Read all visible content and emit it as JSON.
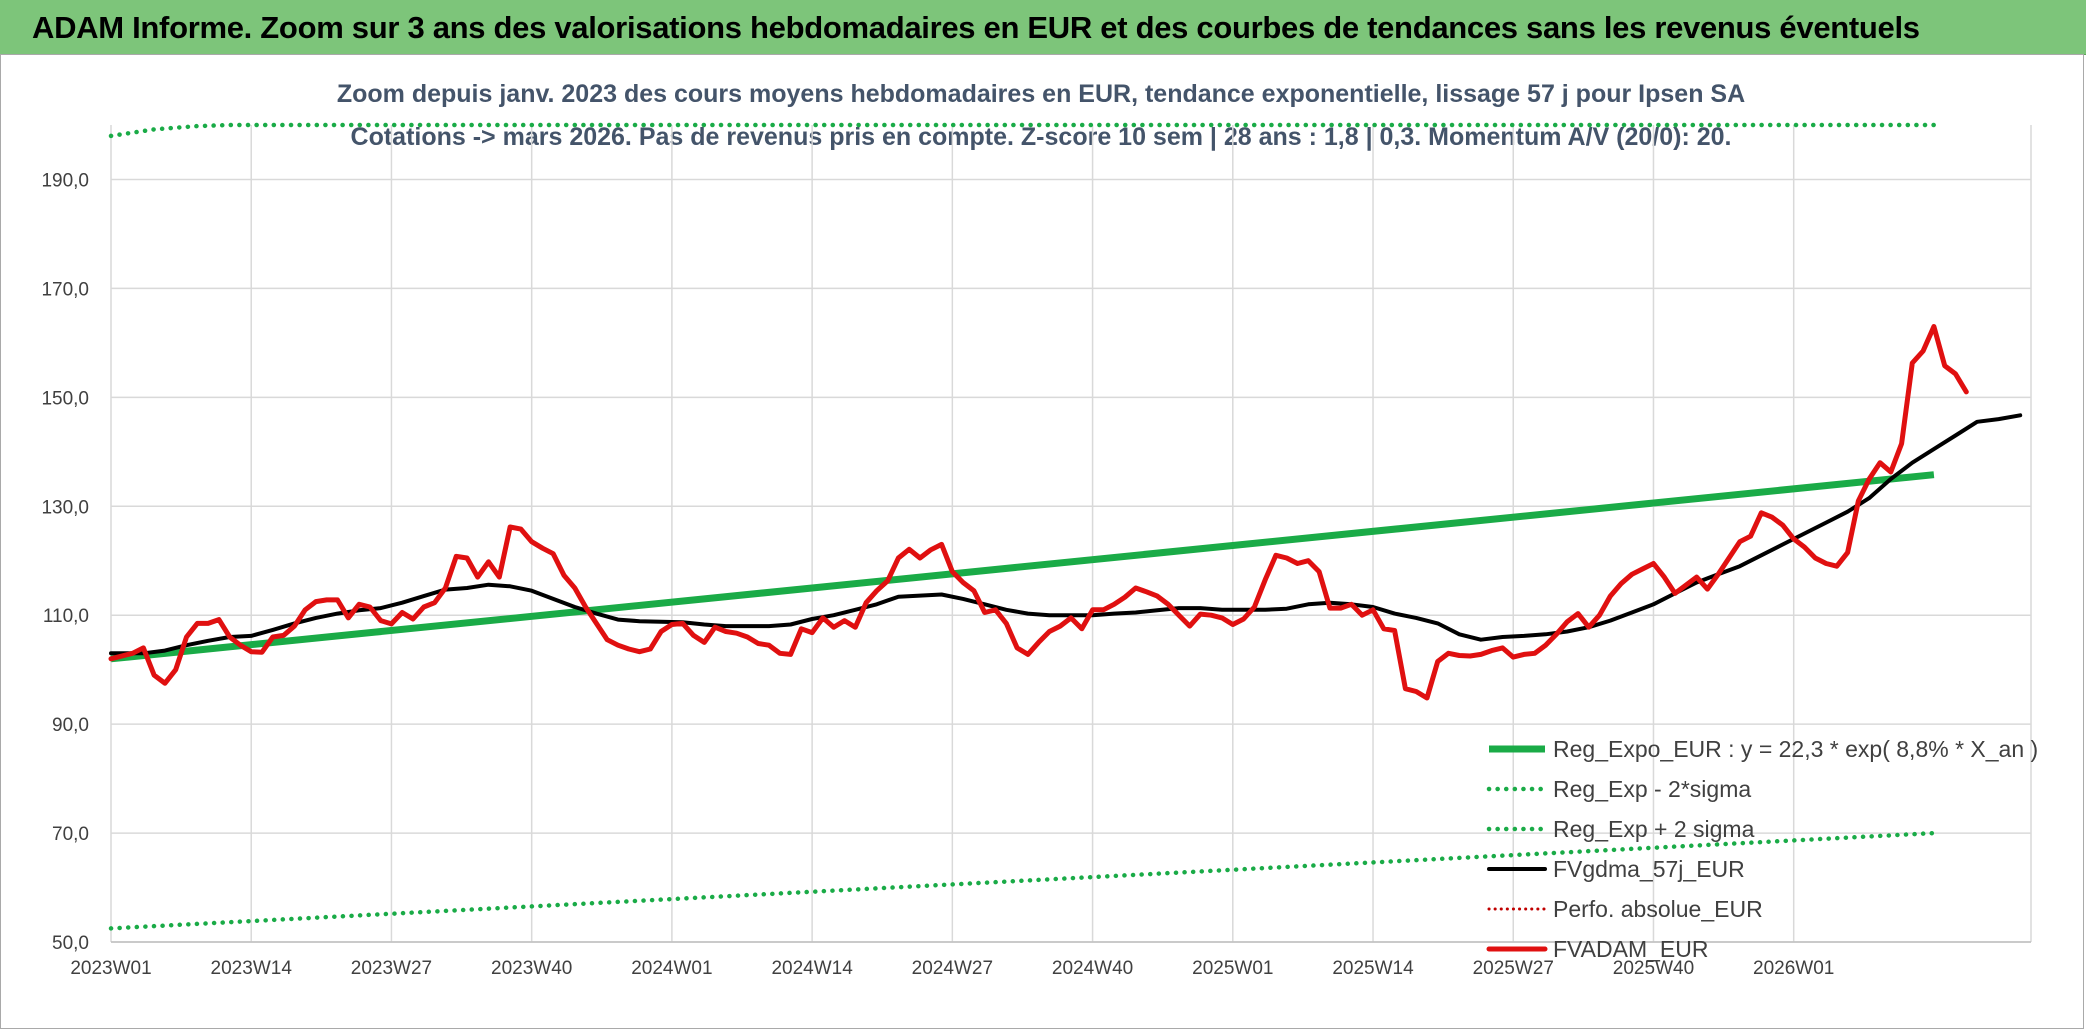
{
  "banner": {
    "title": "ADAM Informe. Zoom sur 3 ans des valorisations hebdomadaires en EUR et des courbes de tendances sans les revenus éventuels"
  },
  "colors": {
    "banner_bg": "#7dc57a",
    "regression": "#1aab47",
    "smooth": "#000000",
    "price": "#e01010",
    "perf": "#c00000",
    "gridline": "#d9d9d9"
  },
  "chart_data": {
    "type": "line",
    "title_lines": [
      "Zoom depuis janv. 2023 des cours moyens hebdomadaires en EUR, tendance exponentielle, lissage 57 j pour Ipsen SA",
      "Cotations -> mars 2026. Pas de revenus pris en compte. Z-score 10 sem | 28 ans : 1,8 | 0,3. Momentum A/V (20/0): 20."
    ],
    "ylim": [
      50,
      200
    ],
    "y_ticks": [
      "50,0",
      "70,0",
      "90,0",
      "110,0",
      "130,0",
      "150,0",
      "170,0",
      "190,0"
    ],
    "x_ticks": [
      "2023W01",
      "2023W14",
      "2023W27",
      "2023W40",
      "2024W01",
      "2024W14",
      "2024W27",
      "2024W40",
      "2025W01",
      "2025W14",
      "2025W27",
      "2025W40",
      "2026W01"
    ],
    "x_index_range": [
      0,
      169
    ],
    "legend_position": "bottom-right inside plot",
    "series": [
      {
        "name": "Reg_Expo_EUR : y = 22,3 * exp( 8,8% *  X_an )",
        "style": "thick-solid",
        "points": [
          [
            0,
            102.0
          ],
          [
            169,
            135.8
          ]
        ]
      },
      {
        "name": "Reg_Exp - 2*sigma",
        "style": "dotted",
        "points": [
          [
            0,
            52.5
          ],
          [
            169,
            70.0
          ]
        ]
      },
      {
        "name": "Reg_Exp + 2 sigma",
        "style": "dotted",
        "points": [
          [
            0,
            198.0
          ],
          [
            4,
            199.2
          ],
          [
            8,
            199.8
          ],
          [
            11,
            200.0
          ],
          [
            169,
            200.0
          ]
        ]
      },
      {
        "name": "FVgdma_57j_EUR",
        "style": "solid",
        "points": [
          [
            0,
            103
          ],
          [
            3,
            103
          ],
          [
            5,
            103.5
          ],
          [
            7,
            104.5
          ],
          [
            9,
            105.3
          ],
          [
            11,
            106
          ],
          [
            13,
            106.2
          ],
          [
            15,
            107.3
          ],
          [
            17,
            108.5
          ],
          [
            19,
            109.5
          ],
          [
            21,
            110.3
          ],
          [
            23,
            110.9
          ],
          [
            25,
            111.3
          ],
          [
            27,
            112.3
          ],
          [
            29,
            113.5
          ],
          [
            31,
            114.7
          ],
          [
            33,
            115
          ],
          [
            35,
            115.6
          ],
          [
            37,
            115.3
          ],
          [
            39,
            114.5
          ],
          [
            41,
            113
          ],
          [
            43,
            111.5
          ],
          [
            45,
            110.3
          ],
          [
            47,
            109.2
          ],
          [
            49,
            108.9
          ],
          [
            51,
            108.8
          ],
          [
            53,
            108.7
          ],
          [
            55,
            108.3
          ],
          [
            57,
            108
          ],
          [
            59,
            108
          ],
          [
            61,
            108
          ],
          [
            63,
            108.3
          ],
          [
            65,
            109.3
          ],
          [
            67,
            110
          ],
          [
            69,
            111
          ],
          [
            71,
            112
          ],
          [
            73,
            113.4
          ],
          [
            75,
            113.6
          ],
          [
            77,
            113.8
          ],
          [
            79,
            113
          ],
          [
            81,
            112
          ],
          [
            83,
            111
          ],
          [
            85,
            110.3
          ],
          [
            87,
            110
          ],
          [
            89,
            110
          ],
          [
            91,
            110
          ],
          [
            93,
            110.3
          ],
          [
            95,
            110.5
          ],
          [
            97,
            110.9
          ],
          [
            99,
            111.3
          ],
          [
            101,
            111.3
          ],
          [
            103,
            111
          ],
          [
            105,
            111
          ],
          [
            107,
            111
          ],
          [
            109,
            111.2
          ],
          [
            111,
            112
          ],
          [
            113,
            112.3
          ],
          [
            115,
            112
          ],
          [
            117,
            111.5
          ],
          [
            119,
            110.3
          ],
          [
            121,
            109.5
          ],
          [
            123,
            108.5
          ],
          [
            125,
            106.5
          ],
          [
            127,
            105.5
          ],
          [
            129,
            106
          ],
          [
            131,
            106.2
          ],
          [
            133,
            106.5
          ],
          [
            135,
            107
          ],
          [
            137,
            107.8
          ],
          [
            139,
            109
          ],
          [
            141,
            110.5
          ],
          [
            143,
            112
          ],
          [
            145,
            114
          ],
          [
            147,
            116
          ],
          [
            149,
            117.5
          ],
          [
            151,
            119
          ],
          [
            153,
            121
          ],
          [
            155,
            123
          ],
          [
            157,
            125
          ],
          [
            159,
            127
          ],
          [
            161,
            129
          ],
          [
            163,
            131.5
          ],
          [
            165,
            135
          ],
          [
            167,
            138
          ],
          [
            169,
            140.5
          ],
          [
            171,
            143
          ],
          [
            173,
            145.5
          ],
          [
            175,
            146
          ],
          [
            177,
            146.7
          ]
        ]
      },
      {
        "name": "Perfo. absolue_EUR",
        "style": "dotted"
      },
      {
        "name": "FVADAM_EUR",
        "style": "thick-solid",
        "points": [
          [
            0,
            102
          ],
          [
            2,
            103
          ],
          [
            3,
            104
          ],
          [
            4,
            99
          ],
          [
            5,
            97.5
          ],
          [
            6,
            100
          ],
          [
            7,
            106
          ],
          [
            8,
            108.5
          ],
          [
            9,
            108.5
          ],
          [
            10,
            109.2
          ],
          [
            11,
            106
          ],
          [
            12,
            104.5
          ],
          [
            13,
            103.3
          ],
          [
            14,
            103.2
          ],
          [
            15,
            106
          ],
          [
            16,
            106.3
          ],
          [
            17,
            108
          ],
          [
            18,
            111
          ],
          [
            19,
            112.5
          ],
          [
            20,
            112.8
          ],
          [
            21,
            112.8
          ],
          [
            22,
            109.5
          ],
          [
            23,
            112
          ],
          [
            24,
            111.5
          ],
          [
            25,
            109
          ],
          [
            26,
            108.4
          ],
          [
            27,
            110.5
          ],
          [
            28,
            109.3
          ],
          [
            29,
            111.5
          ],
          [
            30,
            112.3
          ],
          [
            31,
            115
          ],
          [
            32,
            120.8
          ],
          [
            33,
            120.5
          ],
          [
            34,
            117
          ],
          [
            35,
            119.8
          ],
          [
            36,
            117
          ],
          [
            37,
            126.2
          ],
          [
            38,
            125.8
          ],
          [
            39,
            123.5
          ],
          [
            40,
            122.3
          ],
          [
            41,
            121.3
          ],
          [
            42,
            117.3
          ],
          [
            43,
            115
          ],
          [
            44,
            111.5
          ],
          [
            45,
            108.5
          ],
          [
            46,
            105.5
          ],
          [
            47,
            104.5
          ],
          [
            48,
            103.8
          ],
          [
            49,
            103.3
          ],
          [
            50,
            103.8
          ],
          [
            51,
            107
          ],
          [
            52,
            108.3
          ],
          [
            53,
            108.5
          ],
          [
            54,
            106.3
          ],
          [
            55,
            105
          ],
          [
            56,
            107.8
          ],
          [
            57,
            107
          ],
          [
            58,
            106.7
          ],
          [
            59,
            106
          ],
          [
            60,
            104.8
          ],
          [
            61,
            104.5
          ],
          [
            62,
            103
          ],
          [
            63,
            102.8
          ],
          [
            64,
            107.5
          ],
          [
            65,
            106.8
          ],
          [
            66,
            109.5
          ],
          [
            67,
            107.8
          ],
          [
            68,
            109
          ],
          [
            69,
            107.8
          ],
          [
            70,
            112.3
          ],
          [
            71,
            114.5
          ],
          [
            72,
            116.3
          ],
          [
            73,
            120.5
          ],
          [
            74,
            122.1
          ],
          [
            75,
            120.5
          ],
          [
            76,
            122
          ],
          [
            77,
            123
          ],
          [
            78,
            118
          ],
          [
            79,
            116
          ],
          [
            80,
            114.5
          ],
          [
            81,
            110.5
          ],
          [
            82,
            111
          ],
          [
            83,
            108.5
          ],
          [
            84,
            104
          ],
          [
            85,
            102.8
          ],
          [
            86,
            105
          ],
          [
            87,
            107
          ],
          [
            88,
            108
          ],
          [
            89,
            109.5
          ],
          [
            90,
            107.5
          ],
          [
            91,
            111
          ],
          [
            92,
            111
          ],
          [
            93,
            112
          ],
          [
            94,
            113.3
          ],
          [
            95,
            115
          ],
          [
            96,
            114.3
          ],
          [
            97,
            113.5
          ],
          [
            98,
            112
          ],
          [
            99,
            110
          ],
          [
            100,
            108
          ],
          [
            101,
            110.2
          ],
          [
            102,
            110
          ],
          [
            103,
            109.5
          ],
          [
            104,
            108.3
          ],
          [
            105,
            109.3
          ],
          [
            106,
            111.5
          ],
          [
            107,
            116.5
          ],
          [
            108,
            121
          ],
          [
            109,
            120.5
          ],
          [
            110,
            119.5
          ],
          [
            111,
            120
          ],
          [
            112,
            118
          ],
          [
            113,
            111.3
          ],
          [
            114,
            111.3
          ],
          [
            115,
            112
          ],
          [
            116,
            110
          ],
          [
            117,
            111
          ],
          [
            118,
            107.5
          ],
          [
            119,
            107.2
          ],
          [
            120,
            96.5
          ],
          [
            121,
            96
          ],
          [
            122,
            94.8
          ],
          [
            123,
            101.5
          ],
          [
            124,
            103
          ],
          [
            125,
            102.6
          ],
          [
            126,
            102.5
          ],
          [
            127,
            102.8
          ],
          [
            128,
            103.5
          ],
          [
            129,
            104
          ],
          [
            130,
            102.3
          ],
          [
            131,
            102.8
          ],
          [
            132,
            103
          ],
          [
            133,
            104.5
          ],
          [
            134,
            106.5
          ],
          [
            135,
            108.8
          ],
          [
            136,
            110.3
          ],
          [
            137,
            107.8
          ],
          [
            138,
            110
          ],
          [
            139,
            113.5
          ],
          [
            140,
            115.8
          ],
          [
            141,
            117.5
          ],
          [
            142,
            118.5
          ],
          [
            143,
            119.5
          ],
          [
            144,
            117
          ],
          [
            145,
            114
          ],
          [
            146,
            115.5
          ],
          [
            147,
            117
          ],
          [
            148,
            114.8
          ],
          [
            149,
            117.5
          ],
          [
            150,
            120.5
          ],
          [
            151,
            123.5
          ],
          [
            152,
            124.5
          ],
          [
            153,
            128.8
          ],
          [
            154,
            128
          ],
          [
            155,
            126.5
          ],
          [
            156,
            124
          ],
          [
            157,
            122.5
          ],
          [
            158,
            120.5
          ],
          [
            159,
            119.5
          ],
          [
            160,
            119
          ],
          [
            161,
            121.5
          ],
          [
            162,
            131
          ],
          [
            163,
            135
          ],
          [
            164,
            138
          ],
          [
            165,
            136.3
          ],
          [
            166,
            141.5
          ],
          [
            167,
            156.3
          ],
          [
            168,
            158.5
          ],
          [
            169,
            163
          ],
          [
            170,
            155.8
          ],
          [
            171,
            154.3
          ],
          [
            172,
            151
          ]
        ]
      }
    ]
  }
}
